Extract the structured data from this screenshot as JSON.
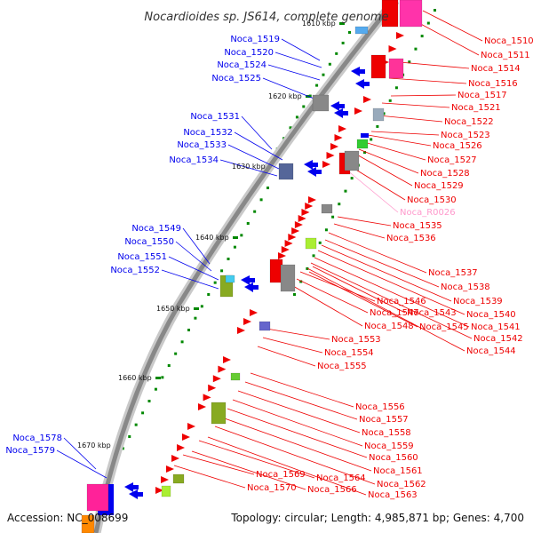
{
  "title": "Nocardioides sp. JS614, complete genome",
  "footer": {
    "accession": "Accession: NC_008699",
    "summary": "Topology: circular; Length: 4,985,871 bp; Genes: 4,700"
  },
  "colors": {
    "forward": "#0000ee",
    "reverse": "#ee0000",
    "rna": "#ff99cc",
    "backbone": "#888888",
    "ticks": "#008800"
  },
  "kbp_marks": [
    "1610 kbp",
    "1620 kbp",
    "1630 kbp",
    "1640 kbp",
    "1650 kbp",
    "1660 kbp",
    "1670 kbp"
  ],
  "left_labels": [
    "Noca_1519",
    "Noca_1520",
    "Noca_1524",
    "Noca_1525",
    "Noca_1531",
    "Noca_1532",
    "Noca_1533",
    "Noca_1534",
    "Noca_1549",
    "Noca_1550",
    "Noca_1551",
    "Noca_1552",
    "Noca_1578",
    "Noca_1579"
  ],
  "right_labels": [
    "Noca_1510",
    "Noca_1511",
    "Noca_1514",
    "Noca_1516",
    "Noca_1517",
    "Noca_1521",
    "Noca_1522",
    "Noca_1523",
    "Noca_1526",
    "Noca_1527",
    "Noca_1528",
    "Noca_1529",
    "Noca_1530",
    "Noca_R0026",
    "Noca_1535",
    "Noca_1536",
    "Noca_1537",
    "Noca_1538",
    "Noca_1539",
    "Noca_1540",
    "Noca_1541",
    "Noca_1542",
    "Noca_1544",
    "Noca_1543",
    "Noca_1545",
    "Noca_1546",
    "Noca_1547",
    "Noca_1548",
    "Noca_1553",
    "Noca_1554",
    "Noca_1555",
    "Noca_1556",
    "Noca_1557",
    "Noca_1558",
    "Noca_1559",
    "Noca_1560",
    "Noca_1561",
    "Noca_1562",
    "Noca_1563",
    "Noca_1564",
    "Noca_1566",
    "Noca_1569",
    "Noca_1570"
  ]
}
